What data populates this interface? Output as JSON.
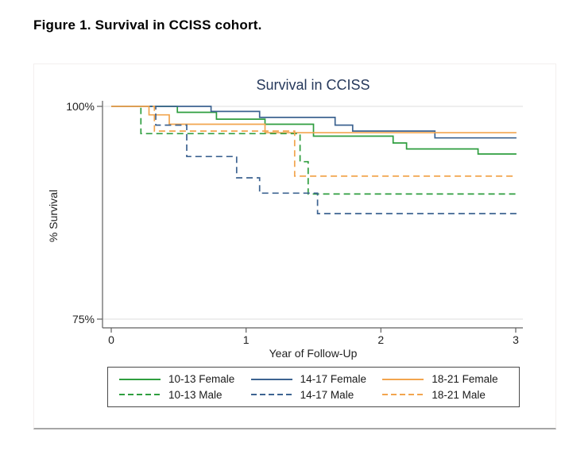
{
  "caption": {
    "text": "Figure 1. Survival in CCISS cohort."
  },
  "chart_data": {
    "type": "line",
    "subtype": "step-survival",
    "title": "Survival in CCISS",
    "xlabel": "Year of Follow-Up",
    "ylabel": "% Survival",
    "xlim": [
      0,
      3
    ],
    "ylim": [
      75,
      100
    ],
    "xticks": [
      0,
      1,
      2,
      3
    ],
    "yticks": [
      100,
      75
    ],
    "xtick_labels": [
      "0",
      "1",
      "2",
      "3"
    ],
    "ytick_labels": [
      "100%",
      "75%"
    ],
    "grid": "horizontal-at-yticks",
    "legend_position": "bottom",
    "title_color": "#26395c",
    "series": [
      {
        "name": "10-13 Female",
        "color": "#2f9e3f",
        "dashed": false,
        "points": [
          [
            0,
            100
          ],
          [
            0.49,
            99.3
          ],
          [
            0.78,
            98.5
          ],
          [
            1.14,
            97.9
          ],
          [
            1.5,
            96.5
          ],
          [
            2.09,
            95.7
          ],
          [
            2.19,
            95.0
          ],
          [
            2.72,
            94.4
          ]
        ]
      },
      {
        "name": "14-17 Female",
        "color": "#3d6391",
        "dashed": false,
        "points": [
          [
            0,
            100
          ],
          [
            0.74,
            99.4
          ],
          [
            1.1,
            98.7
          ],
          [
            1.66,
            97.8
          ],
          [
            1.79,
            97.1
          ],
          [
            2.4,
            96.3
          ]
        ]
      },
      {
        "name": "18-21 Female",
        "color": "#f2a54e",
        "dashed": false,
        "points": [
          [
            0,
            100
          ],
          [
            0.28,
            99.0
          ],
          [
            0.43,
            97.9
          ],
          [
            1.14,
            96.9
          ]
        ]
      },
      {
        "name": "10-13 Male",
        "color": "#2f9e3f",
        "dashed": true,
        "points": [
          [
            0,
            100
          ],
          [
            0.22,
            96.8
          ],
          [
            1.4,
            93.5
          ],
          [
            1.46,
            89.7
          ]
        ]
      },
      {
        "name": "14-17 Male",
        "color": "#3d6391",
        "dashed": true,
        "points": [
          [
            0,
            100
          ],
          [
            0.33,
            97.8
          ],
          [
            0.56,
            94.1
          ],
          [
            0.93,
            91.6
          ],
          [
            1.1,
            89.8
          ],
          [
            1.53,
            87.4
          ]
        ]
      },
      {
        "name": "18-21 Male",
        "color": "#f2a54e",
        "dashed": true,
        "points": [
          [
            0,
            100
          ],
          [
            0.32,
            97.1
          ],
          [
            1.36,
            91.8
          ]
        ]
      }
    ]
  }
}
